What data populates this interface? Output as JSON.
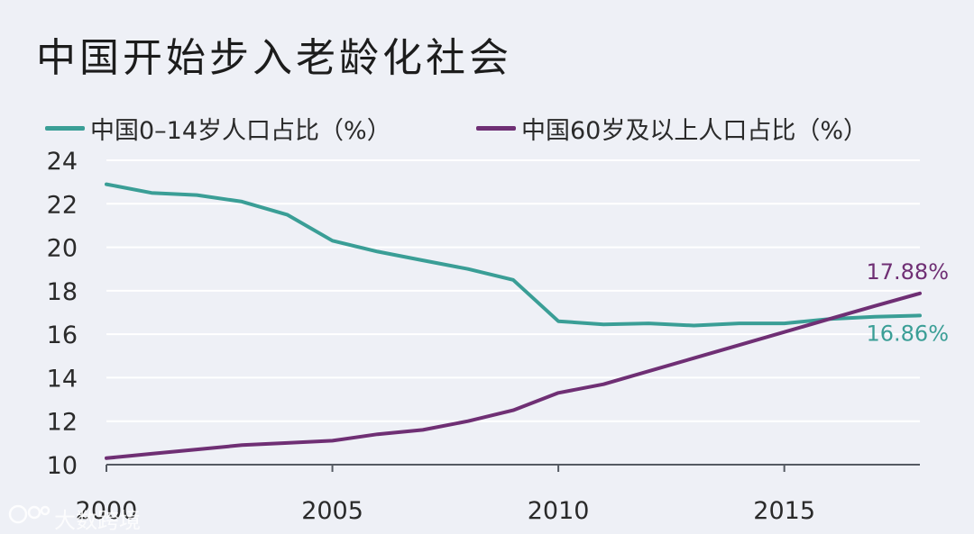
{
  "chart_data": {
    "type": "line",
    "title": "中国开始步入老龄化社会",
    "xlabel": "",
    "ylabel": "",
    "xlim": [
      2000,
      2018
    ],
    "ylim": [
      10,
      24
    ],
    "yticks": [
      10,
      12,
      14,
      16,
      18,
      20,
      22,
      24
    ],
    "xticks": [
      2000,
      2005,
      2010,
      2015
    ],
    "x": [
      2000,
      2001,
      2002,
      2003,
      2004,
      2005,
      2006,
      2007,
      2008,
      2009,
      2010,
      2011,
      2012,
      2013,
      2014,
      2015,
      2016,
      2017,
      2018
    ],
    "series": [
      {
        "name": "中国0–14岁人口占比（%）",
        "color": "#3a9e96",
        "values": [
          22.9,
          22.5,
          22.4,
          22.1,
          21.5,
          20.3,
          19.8,
          19.4,
          19.0,
          18.5,
          16.6,
          16.45,
          16.5,
          16.4,
          16.5,
          16.5,
          16.7,
          16.8,
          16.86
        ],
        "end_label": "16.86%"
      },
      {
        "name": "中国60岁及以上人口占比（%）",
        "color": "#6f2f74",
        "values": [
          10.3,
          10.5,
          10.7,
          10.9,
          11.0,
          11.1,
          11.4,
          11.6,
          12.0,
          12.5,
          13.3,
          13.7,
          14.3,
          14.9,
          15.5,
          16.1,
          16.7,
          17.3,
          17.88
        ],
        "end_label": "17.88%"
      }
    ],
    "grid": true,
    "legend": "top"
  },
  "watermark": "大数跨境"
}
